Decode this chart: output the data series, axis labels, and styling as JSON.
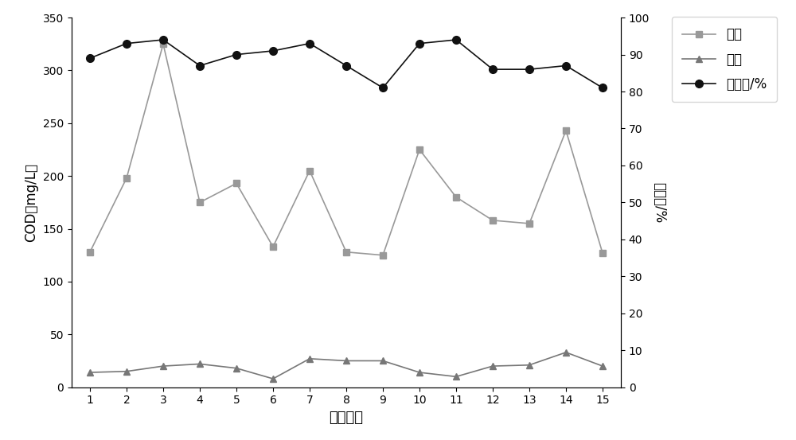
{
  "x": [
    1,
    2,
    3,
    4,
    5,
    6,
    7,
    8,
    9,
    10,
    11,
    12,
    13,
    14,
    15
  ],
  "jinshui": [
    128,
    198,
    325,
    175,
    193,
    133,
    205,
    128,
    125,
    225,
    180,
    158,
    155,
    243,
    127
  ],
  "chushui": [
    14,
    15,
    20,
    22,
    18,
    8,
    27,
    25,
    25,
    14,
    10,
    20,
    21,
    33,
    20
  ],
  "quchulv": [
    89,
    93,
    94,
    87,
    90,
    91,
    93,
    87,
    81,
    93,
    94,
    86,
    86,
    87,
    81
  ],
  "left_ylabel": "COD（mg/L）",
  "right_ylabel": "去除率/%",
  "xlabel": "取样编号",
  "ylim_left": [
    0,
    350
  ],
  "ylim_right": [
    0,
    100
  ],
  "yticks_left": [
    0,
    50,
    100,
    150,
    200,
    250,
    300,
    350
  ],
  "yticks_right": [
    0,
    10,
    20,
    30,
    40,
    50,
    60,
    70,
    80,
    90,
    100
  ],
  "line_jinshui_color": "#999999",
  "line_chushui_color": "#777777",
  "line_quchulv_color": "#111111",
  "marker_jinshui": "s",
  "marker_chushui": "^",
  "marker_quchulv": "o",
  "legend_jinshui": "进水",
  "legend_chushui": "出水",
  "legend_quchulv": "去除率/%",
  "figsize": [
    10,
    5.53
  ],
  "dpi": 100,
  "background_color": "#ffffff"
}
